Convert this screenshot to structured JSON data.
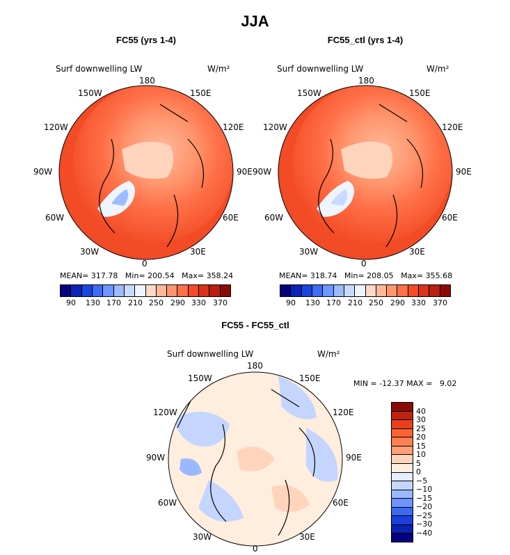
{
  "title": "JJA",
  "chart_data": [
    {
      "type": "heatmap",
      "title": "FC55 (yrs 1-4)",
      "subtitle": "Surf downwelling LW",
      "units": "W/m²",
      "projection": "north polar stereographic",
      "longitude_labels": [
        "180",
        "150E",
        "120E",
        "90E",
        "60E",
        "30E",
        "0",
        "30W",
        "60W",
        "90W",
        "120W",
        "150W"
      ],
      "stats": {
        "mean_label": "MEAN=",
        "mean": "317.78",
        "min_label": "Min=",
        "min": "200.54",
        "max_label": "Max=",
        "max": "358.24"
      },
      "colorbar_ticks": [
        "90",
        "130",
        "170",
        "210",
        "250",
        "290",
        "330",
        "370"
      ],
      "colorbar_colors": [
        "#07007f",
        "#0a24b8",
        "#1a46e0",
        "#3f6cf5",
        "#6e97ff",
        "#9dbcff",
        "#c8dbff",
        "#eef5ff",
        "#ffd9c8",
        "#ffb99a",
        "#ff966e",
        "#ff7048",
        "#f24b26",
        "#d93418",
        "#b8200f",
        "#8c0a05"
      ]
    },
    {
      "type": "heatmap",
      "title": "FC55_ctl (yrs 1-4)",
      "subtitle": "Surf downwelling LW",
      "units": "W/m²",
      "projection": "north polar stereographic",
      "longitude_labels": [
        "180",
        "150E",
        "120E",
        "90E",
        "60E",
        "30E",
        "0",
        "30W",
        "60W",
        "90W",
        "120W",
        "150W"
      ],
      "stats": {
        "mean_label": "MEAN=",
        "mean": "318.74",
        "min_label": "Min=",
        "min": "208.05",
        "max_label": "Max=",
        "max": "355.68"
      },
      "colorbar_ticks": [
        "90",
        "130",
        "170",
        "210",
        "250",
        "290",
        "330",
        "370"
      ],
      "colorbar_colors": [
        "#07007f",
        "#0a24b8",
        "#1a46e0",
        "#3f6cf5",
        "#6e97ff",
        "#9dbcff",
        "#c8dbff",
        "#eef5ff",
        "#ffd9c8",
        "#ffb99a",
        "#ff966e",
        "#ff7048",
        "#f24b26",
        "#d93418",
        "#b8200f",
        "#8c0a05"
      ]
    },
    {
      "type": "heatmap",
      "title": "FC55 - FC55_ctl",
      "subtitle": "Surf downwelling LW",
      "units": "W/m²",
      "projection": "north polar stereographic",
      "longitude_labels": [
        "180",
        "150E",
        "120E",
        "90E",
        "60E",
        "30E",
        "0",
        "30W",
        "60W",
        "90W",
        "120W",
        "150W"
      ],
      "stats": {
        "min_label": "MIN =",
        "min": "-12.37",
        "max_label": "MAX =",
        "max": "9.02"
      },
      "colorbar_ticks": [
        "40",
        "30",
        "25",
        "20",
        "15",
        "10",
        "5",
        "0",
        "−5",
        "−10",
        "−15",
        "−20",
        "−25",
        "−30",
        "−40"
      ],
      "colorbar_colors": [
        "#8c0a05",
        "#c0220f",
        "#e8401c",
        "#ff6232",
        "#ff8050",
        "#ffa078",
        "#ffd4bd",
        "#ffeede",
        "#e6eeff",
        "#c4d6ff",
        "#9ab8ff",
        "#6d93ff",
        "#3f68f0",
        "#1c3fdc",
        "#0a22b4",
        "#060080"
      ]
    }
  ]
}
